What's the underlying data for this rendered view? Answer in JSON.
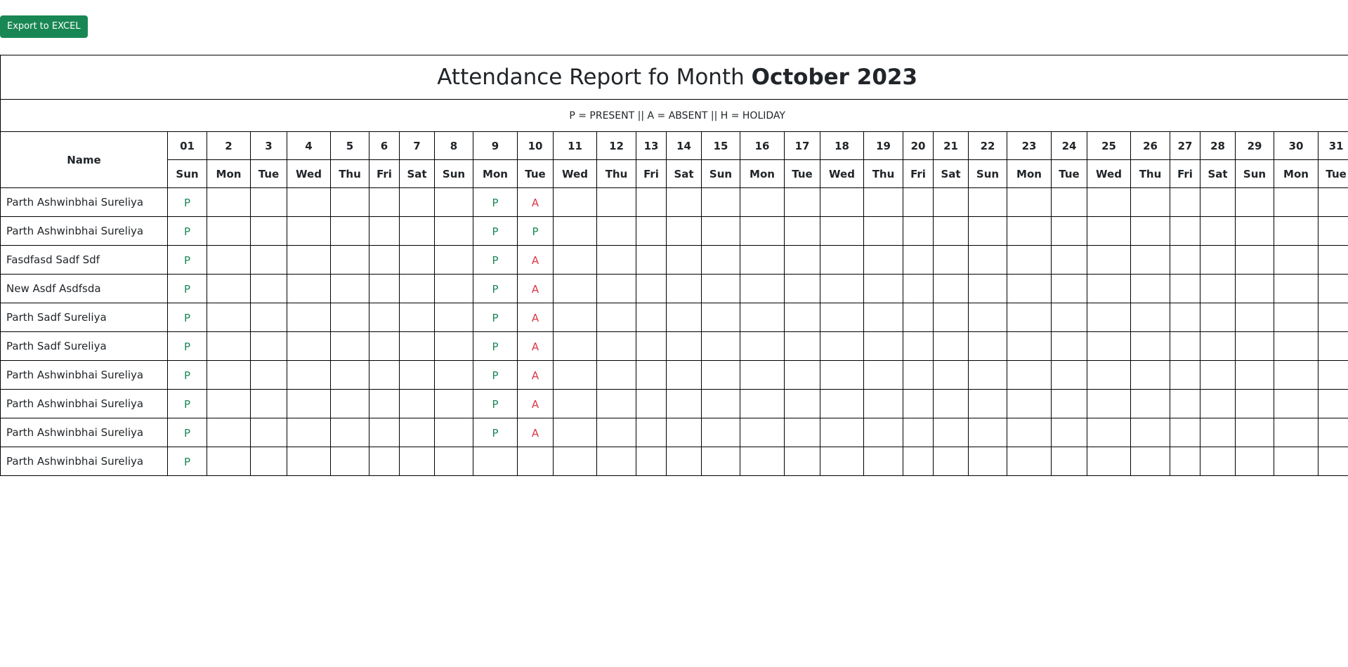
{
  "toolbar": {
    "export_label": "Export to EXCEL",
    "export_color": "#198754"
  },
  "report": {
    "title_prefix": "Attendance Report fo Month ",
    "title_month": "October 2023",
    "legend": "P = PRESENT || A = ABSENT || H = HOLIDAY",
    "name_header": "Name",
    "days": [
      "01",
      "2",
      "3",
      "4",
      "5",
      "6",
      "7",
      "8",
      "9",
      "10",
      "11",
      "12",
      "13",
      "14",
      "15",
      "16",
      "17",
      "18",
      "19",
      "20",
      "21",
      "22",
      "23",
      "24",
      "25",
      "26",
      "27",
      "28",
      "29",
      "30",
      "31"
    ],
    "weekdays": [
      "Sun",
      "Mon",
      "Tue",
      "Wed",
      "Thu",
      "Fri",
      "Sat",
      "Sun",
      "Mon",
      "Tue",
      "Wed",
      "Thu",
      "Fri",
      "Sat",
      "Sun",
      "Mon",
      "Tue",
      "Wed",
      "Thu",
      "Fri",
      "Sat",
      "Sun",
      "Mon",
      "Tue",
      "Wed",
      "Thu",
      "Fri",
      "Sat",
      "Sun",
      "Mon",
      "Tue"
    ],
    "colors": {
      "present": "#198754",
      "absent": "#dc3545"
    },
    "rows": [
      {
        "name": "Parth Ashwinbhai Sureliya",
        "marks": {
          "01": "P",
          "9": "P",
          "10": "A"
        }
      },
      {
        "name": "Parth Ashwinbhai Sureliya",
        "marks": {
          "01": "P",
          "9": "P",
          "10": "P"
        }
      },
      {
        "name": "Fasdfasd Sadf Sdf",
        "marks": {
          "01": "P",
          "9": "P",
          "10": "A"
        }
      },
      {
        "name": "New Asdf Asdfsda",
        "marks": {
          "01": "P",
          "9": "P",
          "10": "A"
        }
      },
      {
        "name": "Parth Sadf Sureliya",
        "marks": {
          "01": "P",
          "9": "P",
          "10": "A"
        }
      },
      {
        "name": "Parth Sadf Sureliya",
        "marks": {
          "01": "P",
          "9": "P",
          "10": "A"
        }
      },
      {
        "name": "Parth Ashwinbhai Sureliya",
        "marks": {
          "01": "P",
          "9": "P",
          "10": "A"
        }
      },
      {
        "name": "Parth Ashwinbhai Sureliya",
        "marks": {
          "01": "P",
          "9": "P",
          "10": "A"
        }
      },
      {
        "name": "Parth Ashwinbhai Sureliya",
        "marks": {
          "01": "P",
          "9": "P",
          "10": "A"
        }
      },
      {
        "name": "Parth Ashwinbhai Sureliya",
        "marks": {
          "01": "P"
        }
      }
    ]
  }
}
